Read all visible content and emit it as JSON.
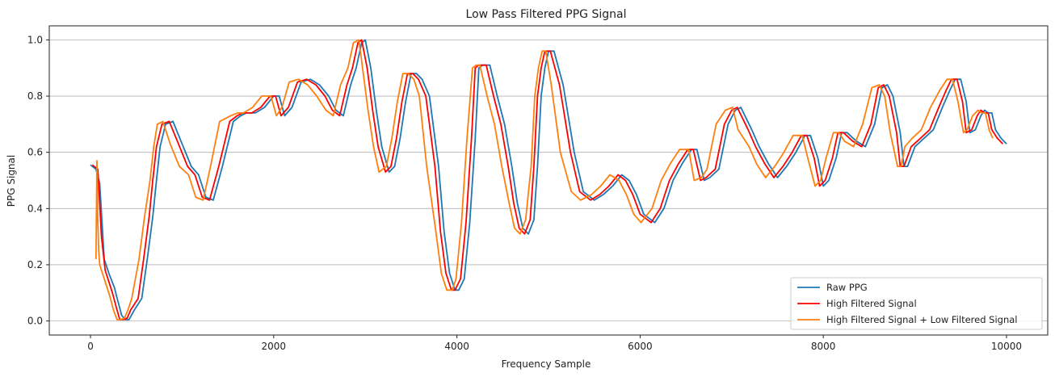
{
  "chart_data": {
    "type": "line",
    "title": "Low Pass Filtered PPG Signal",
    "xlabel": "Frequency Sample",
    "ylabel": "PPG Signal",
    "xlim": [
      -450,
      10450
    ],
    "ylim": [
      -0.05,
      1.05
    ],
    "xticks": [
      0,
      2000,
      4000,
      6000,
      8000,
      10000
    ],
    "xtick_labels": [
      "0",
      "2000",
      "4000",
      "6000",
      "8000",
      "10000"
    ],
    "yticks": [
      0.0,
      0.2,
      0.4,
      0.6,
      0.8,
      1.0
    ],
    "ytick_labels": [
      "0.0",
      "0.2",
      "0.4",
      "0.6",
      "0.8",
      "1.0"
    ],
    "grid": "horizontal",
    "legend_position": "lower-right",
    "series": [
      {
        "name": "Raw PPG",
        "color": "#1f77b4",
        "x": [
          0,
          60,
          100,
          150,
          200,
          260,
          300,
          340,
          380,
          420,
          480,
          560,
          620,
          680,
          720,
          760,
          820,
          900,
          1000,
          1100,
          1180,
          1260,
          1340,
          1440,
          1560,
          1640,
          1700,
          1800,
          1900,
          2000,
          2060,
          2120,
          2200,
          2300,
          2400,
          2500,
          2600,
          2680,
          2760,
          2840,
          2900,
          2960,
          3000,
          3060,
          3120,
          3180,
          3260,
          3320,
          3380,
          3440,
          3500,
          3560,
          3620,
          3700,
          3800,
          3860,
          3920,
          3980,
          4020,
          4080,
          4140,
          4200,
          4240,
          4280,
          4360,
          4440,
          4520,
          4600,
          4660,
          4720,
          4780,
          4840,
          4880,
          4920,
          4960,
          5000,
          5060,
          5160,
          5280,
          5380,
          5500,
          5600,
          5700,
          5800,
          5880,
          5960,
          6040,
          6160,
          6260,
          6360,
          6460,
          6560,
          6620,
          6700,
          6760,
          6860,
          6960,
          7040,
          7100,
          7220,
          7300,
          7400,
          7500,
          7600,
          7700,
          7800,
          7860,
          7940,
          8000,
          8060,
          8140,
          8200,
          8260,
          8360,
          8460,
          8560,
          8640,
          8700,
          8760,
          8840,
          8880,
          8920,
          9000,
          9100,
          9200,
          9300,
          9380,
          9440,
          9500,
          9560,
          9600,
          9660,
          9720,
          9760,
          9800,
          9840,
          9880,
          9940,
          10000
        ],
        "y": [
          0.555,
          0.54,
          0.49,
          0.22,
          0.17,
          0.12,
          0.07,
          0.02,
          0.005,
          0.005,
          0.04,
          0.08,
          0.22,
          0.37,
          0.5,
          0.62,
          0.7,
          0.71,
          0.63,
          0.55,
          0.52,
          0.44,
          0.43,
          0.55,
          0.71,
          0.73,
          0.74,
          0.74,
          0.76,
          0.8,
          0.8,
          0.73,
          0.76,
          0.85,
          0.86,
          0.84,
          0.8,
          0.75,
          0.73,
          0.84,
          0.9,
          0.99,
          1.0,
          0.9,
          0.75,
          0.62,
          0.53,
          0.55,
          0.65,
          0.78,
          0.88,
          0.88,
          0.86,
          0.8,
          0.55,
          0.32,
          0.17,
          0.11,
          0.11,
          0.15,
          0.35,
          0.65,
          0.9,
          0.91,
          0.91,
          0.8,
          0.7,
          0.55,
          0.42,
          0.33,
          0.31,
          0.36,
          0.55,
          0.8,
          0.9,
          0.96,
          0.96,
          0.84,
          0.6,
          0.46,
          0.43,
          0.45,
          0.48,
          0.52,
          0.5,
          0.45,
          0.38,
          0.35,
          0.4,
          0.5,
          0.56,
          0.61,
          0.61,
          0.5,
          0.51,
          0.54,
          0.7,
          0.75,
          0.76,
          0.68,
          0.62,
          0.56,
          0.51,
          0.55,
          0.6,
          0.66,
          0.66,
          0.58,
          0.48,
          0.5,
          0.58,
          0.67,
          0.67,
          0.64,
          0.62,
          0.7,
          0.83,
          0.84,
          0.8,
          0.67,
          0.55,
          0.55,
          0.62,
          0.65,
          0.68,
          0.76,
          0.82,
          0.86,
          0.86,
          0.78,
          0.67,
          0.68,
          0.73,
          0.75,
          0.74,
          0.74,
          0.68,
          0.65,
          0.63
        ]
      },
      {
        "name": "High Filtered Signal",
        "color": "#ff0000",
        "x": [
          20,
          80,
          120,
          160,
          200,
          240,
          280,
          320,
          360,
          400,
          440,
          520,
          580,
          640,
          680,
          720,
          780,
          860,
          960,
          1060,
          1140,
          1220,
          1300,
          1400,
          1520,
          1600,
          1660,
          1760,
          1860,
          1960,
          2020,
          2080,
          2160,
          2260,
          2360,
          2460,
          2560,
          2640,
          2720,
          2800,
          2860,
          2920,
          2960,
          3020,
          3080,
          3140,
          3220,
          3280,
          3340,
          3400,
          3460,
          3520,
          3580,
          3660,
          3760,
          3820,
          3880,
          3940,
          3980,
          4040,
          4100,
          4160,
          4200,
          4240,
          4320,
          4400,
          4480,
          4560,
          4620,
          4680,
          4740,
          4800,
          4840,
          4880,
          4920,
          4960,
          5020,
          5120,
          5240,
          5340,
          5460,
          5560,
          5660,
          5760,
          5840,
          5920,
          6000,
          6120,
          6220,
          6320,
          6420,
          6520,
          6580,
          6660,
          6720,
          6820,
          6920,
          7000,
          7060,
          7180,
          7260,
          7360,
          7460,
          7560,
          7660,
          7760,
          7820,
          7900,
          7960,
          8020,
          8100,
          8160,
          8220,
          8320,
          8420,
          8520,
          8600,
          8660,
          8720,
          8800,
          8840,
          8880,
          8960,
          9060,
          9160,
          9260,
          9340,
          9400,
          9460,
          9520,
          9560,
          9620,
          9680,
          9720,
          9760,
          9800,
          9840,
          9900,
          9960
        ],
        "y": [
          0.555,
          0.54,
          0.3,
          0.18,
          0.14,
          0.1,
          0.05,
          0.005,
          0.005,
          0.01,
          0.04,
          0.08,
          0.22,
          0.37,
          0.5,
          0.62,
          0.7,
          0.71,
          0.63,
          0.55,
          0.52,
          0.44,
          0.43,
          0.55,
          0.71,
          0.73,
          0.74,
          0.74,
          0.76,
          0.8,
          0.8,
          0.73,
          0.76,
          0.85,
          0.86,
          0.84,
          0.8,
          0.75,
          0.73,
          0.84,
          0.9,
          0.99,
          1.0,
          0.9,
          0.75,
          0.62,
          0.53,
          0.55,
          0.65,
          0.78,
          0.88,
          0.88,
          0.86,
          0.8,
          0.55,
          0.32,
          0.17,
          0.11,
          0.11,
          0.15,
          0.35,
          0.65,
          0.9,
          0.91,
          0.91,
          0.8,
          0.7,
          0.55,
          0.42,
          0.33,
          0.31,
          0.36,
          0.55,
          0.8,
          0.9,
          0.96,
          0.96,
          0.84,
          0.6,
          0.46,
          0.43,
          0.45,
          0.48,
          0.52,
          0.5,
          0.45,
          0.38,
          0.35,
          0.4,
          0.5,
          0.56,
          0.61,
          0.61,
          0.5,
          0.51,
          0.54,
          0.7,
          0.75,
          0.76,
          0.68,
          0.62,
          0.56,
          0.51,
          0.55,
          0.6,
          0.66,
          0.66,
          0.58,
          0.48,
          0.5,
          0.58,
          0.67,
          0.67,
          0.64,
          0.62,
          0.7,
          0.83,
          0.84,
          0.8,
          0.67,
          0.55,
          0.55,
          0.62,
          0.65,
          0.68,
          0.76,
          0.82,
          0.86,
          0.86,
          0.78,
          0.67,
          0.68,
          0.73,
          0.75,
          0.74,
          0.74,
          0.68,
          0.65,
          0.63
        ]
      },
      {
        "name": "High Filtered Signal + Low Filtered Signal",
        "color": "#ff7f0e",
        "x": [
          60,
          70,
          80,
          90,
          100,
          130,
          170,
          210,
          250,
          290,
          330,
          370,
          410,
          450,
          530,
          590,
          650,
          690,
          730,
          790,
          870,
          970,
          1070,
          1150,
          1230,
          1310,
          1410,
          1530,
          1610,
          1670,
          1770,
          1870,
          1970,
          2030,
          2090,
          2170,
          2270,
          2370,
          2470,
          2570,
          2650,
          2730,
          2810,
          2870,
          2930,
          2970,
          3030,
          3090,
          3150,
          3230,
          3290,
          3350,
          3410,
          3470,
          3530,
          3590,
          3670,
          3770,
          3830,
          3890,
          3950,
          3990,
          4050,
          4110,
          4170,
          4210,
          4250,
          4330,
          4410,
          4490,
          4570,
          4630,
          4690,
          4750,
          4810,
          4850,
          4890,
          4930,
          4970,
          5030,
          5130,
          5250,
          5350,
          5470,
          5570,
          5670,
          5770,
          5850,
          5930,
          6010,
          6130,
          6230,
          6330,
          6430,
          6530,
          6590,
          6670,
          6730,
          6830,
          6930,
          7010,
          7070,
          7190,
          7270,
          7370,
          7470,
          7570,
          7670,
          7770,
          7830,
          7910,
          7970,
          8030,
          8110,
          8170,
          8230,
          8330,
          8430,
          8530,
          8610,
          8670,
          8730,
          8810,
          8850,
          8890,
          8970,
          9070,
          9170,
          9270,
          9350,
          9410,
          9470,
          9530,
          9570,
          9630,
          9690,
          9730,
          9770,
          9810,
          9850
        ],
        "y": [
          0.22,
          0.57,
          0.35,
          0.25,
          0.2,
          0.17,
          0.13,
          0.09,
          0.04,
          0.005,
          0.005,
          0.01,
          0.04,
          0.08,
          0.22,
          0.37,
          0.5,
          0.62,
          0.7,
          0.71,
          0.63,
          0.55,
          0.52,
          0.44,
          0.43,
          0.55,
          0.71,
          0.73,
          0.74,
          0.74,
          0.76,
          0.8,
          0.8,
          0.73,
          0.76,
          0.85,
          0.86,
          0.84,
          0.8,
          0.75,
          0.73,
          0.84,
          0.9,
          0.99,
          1.0,
          0.9,
          0.75,
          0.62,
          0.53,
          0.55,
          0.65,
          0.78,
          0.88,
          0.88,
          0.86,
          0.8,
          0.55,
          0.32,
          0.17,
          0.11,
          0.11,
          0.15,
          0.35,
          0.65,
          0.9,
          0.91,
          0.91,
          0.8,
          0.7,
          0.55,
          0.42,
          0.33,
          0.31,
          0.36,
          0.55,
          0.8,
          0.9,
          0.96,
          0.96,
          0.84,
          0.6,
          0.46,
          0.43,
          0.45,
          0.48,
          0.52,
          0.5,
          0.45,
          0.38,
          0.35,
          0.4,
          0.5,
          0.56,
          0.61,
          0.61,
          0.5,
          0.51,
          0.54,
          0.7,
          0.75,
          0.76,
          0.68,
          0.62,
          0.56,
          0.51,
          0.55,
          0.6,
          0.66,
          0.66,
          0.58,
          0.48,
          0.5,
          0.58,
          0.67,
          0.67,
          0.64,
          0.62,
          0.7,
          0.83,
          0.84,
          0.8,
          0.67,
          0.55,
          0.55,
          0.62,
          0.65,
          0.68,
          0.76,
          0.82,
          0.86,
          0.86,
          0.78,
          0.67,
          0.68,
          0.73,
          0.75,
          0.74,
          0.74,
          0.68,
          0.65
        ]
      }
    ]
  }
}
